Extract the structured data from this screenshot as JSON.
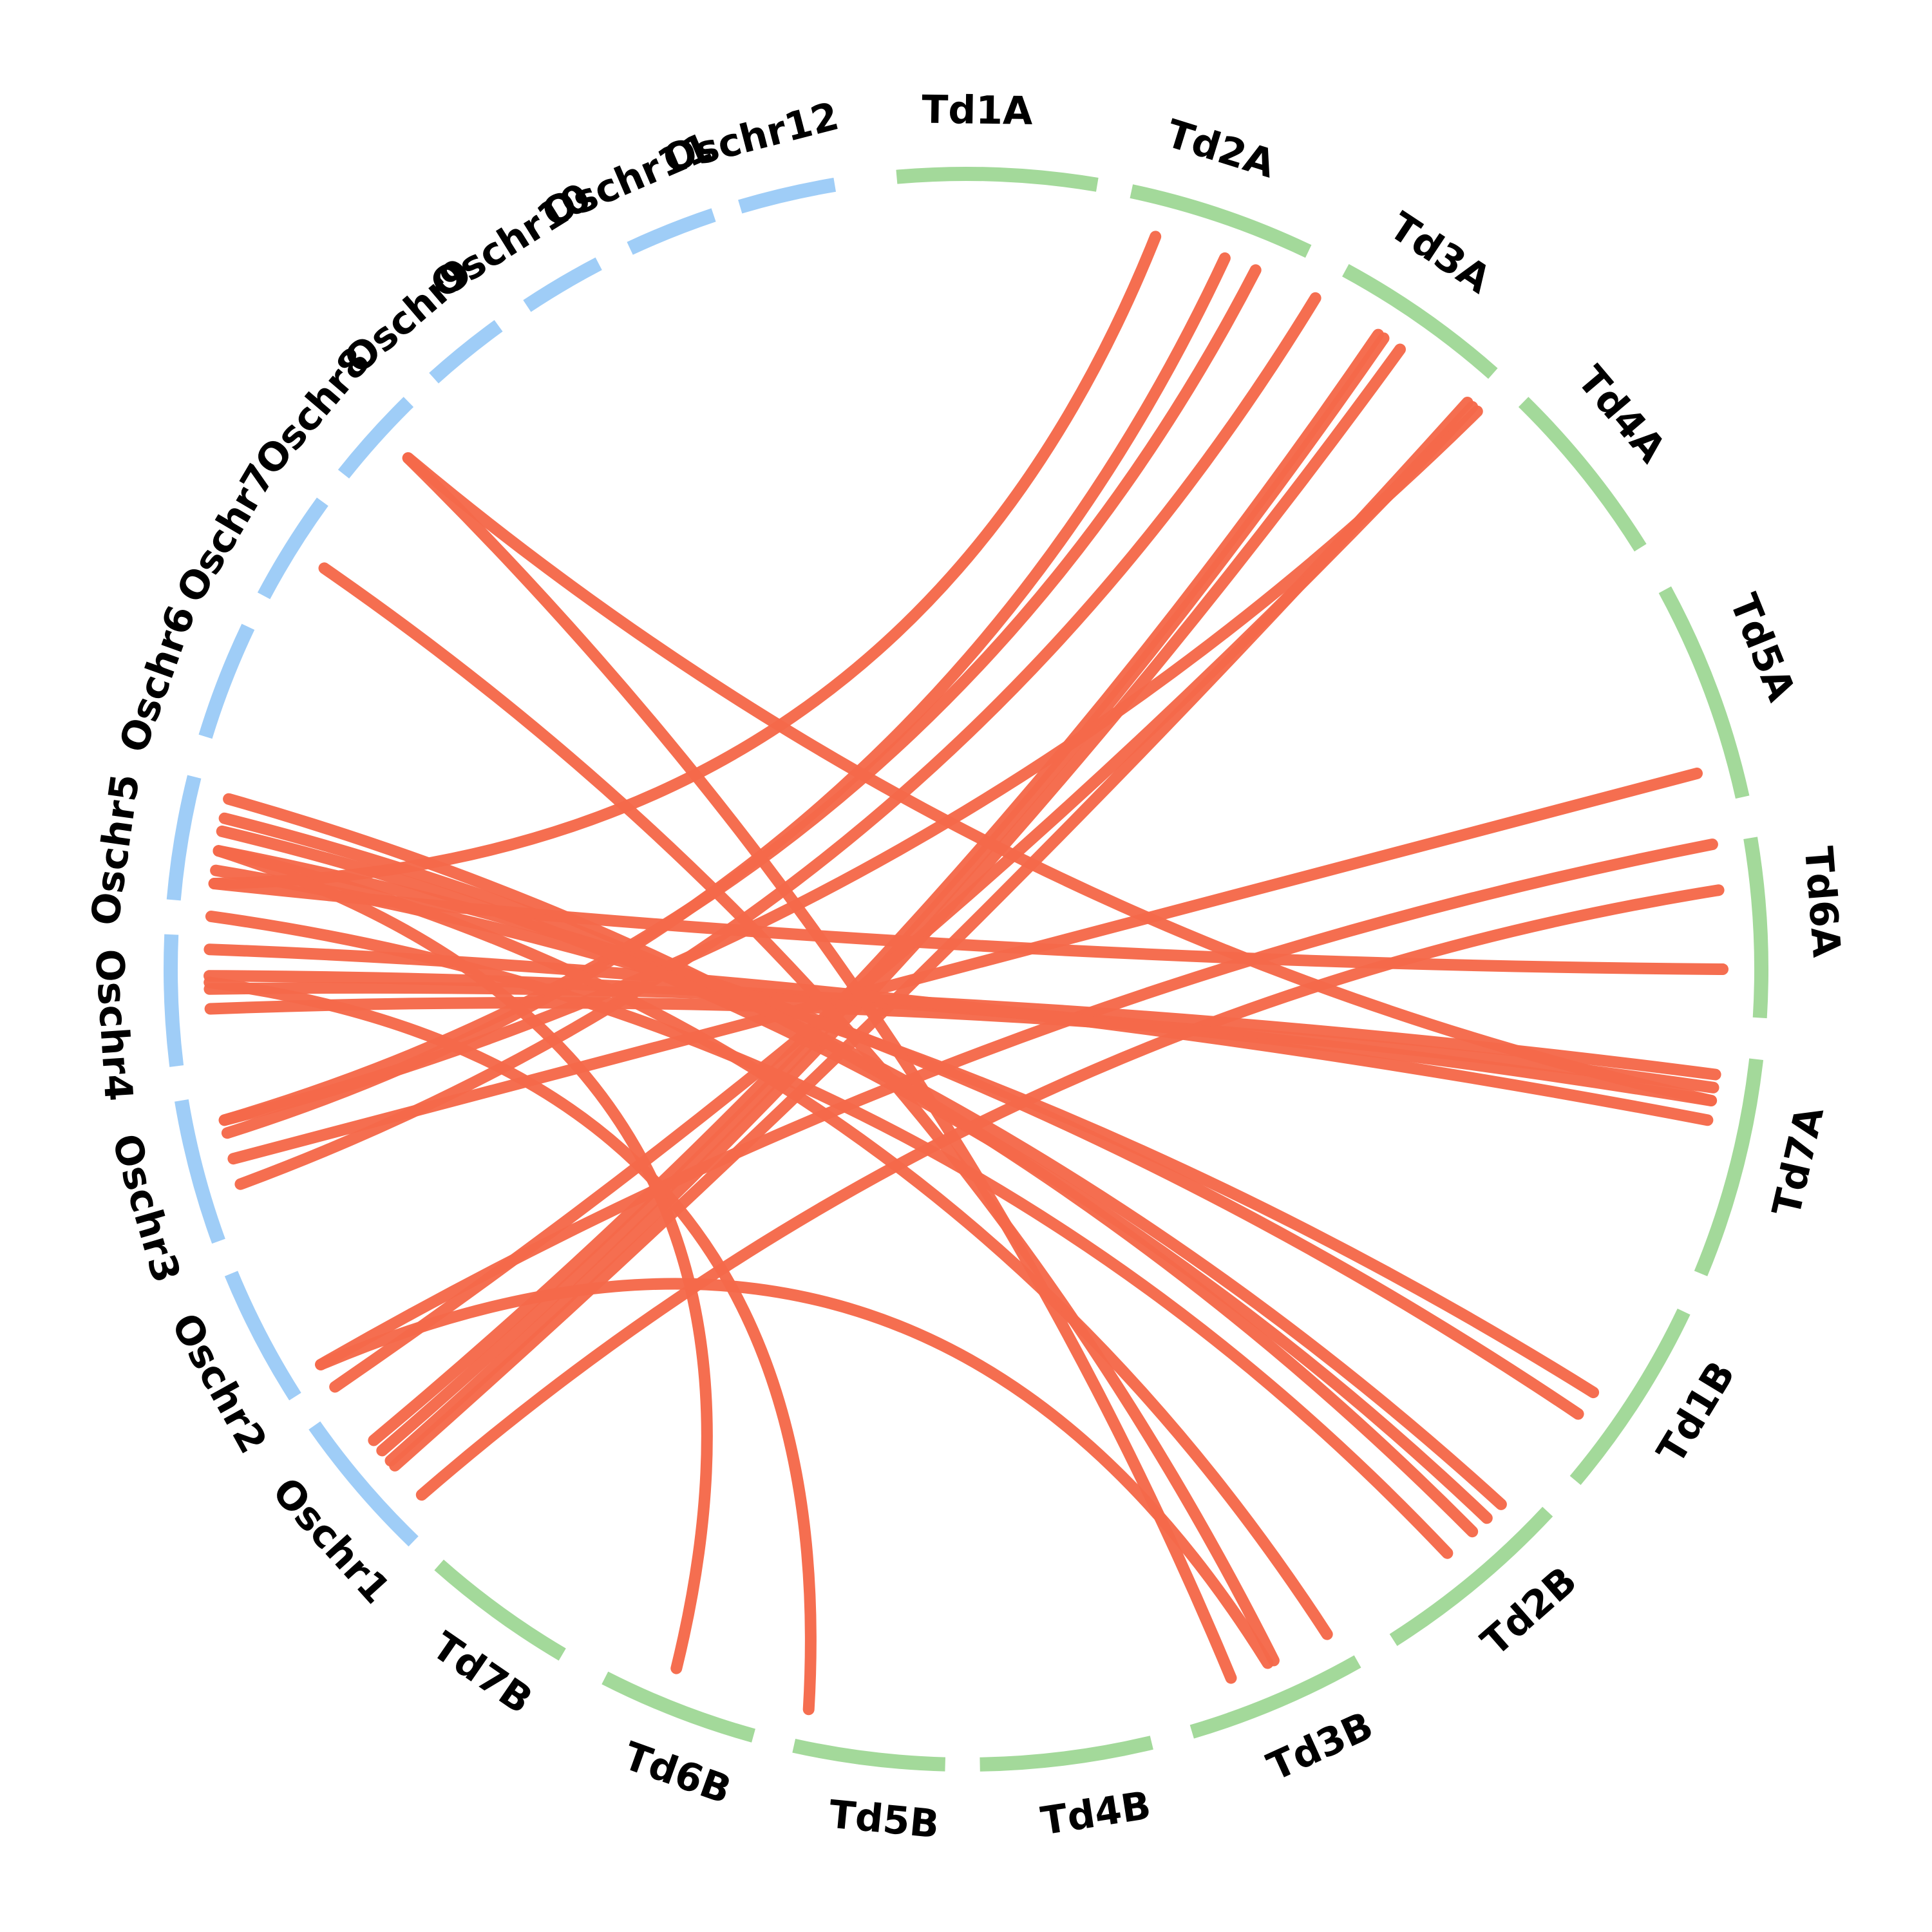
{
  "colors": {
    "wheat_chromosome": "#a3d99a",
    "rice_chromosome": "#9fcdf7",
    "link": "#f5694a",
    "label": "#000000"
  },
  "chromosomes": [
    {
      "id": "Td1A",
      "label": "Td1A",
      "group": "wheat",
      "start": -5.0,
      "end": 9.5
    },
    {
      "id": "Td2A",
      "label": "Td2A",
      "group": "wheat",
      "start": 12.0,
      "end": 25.5
    },
    {
      "id": "Td3A",
      "label": "Td3A",
      "group": "wheat",
      "start": 28.5,
      "end": 41.5
    },
    {
      "id": "Td4A",
      "label": "Td4A",
      "group": "wheat",
      "start": 44.5,
      "end": 58.0
    },
    {
      "id": "Td5A",
      "label": "Td5A",
      "group": "wheat",
      "start": 61.5,
      "end": 77.5
    },
    {
      "id": "Td6A",
      "label": "Td6A",
      "group": "wheat",
      "start": 80.5,
      "end": 93.5
    },
    {
      "id": "Td7A",
      "label": "Td7A",
      "group": "wheat",
      "start": 96.5,
      "end": 112.5
    },
    {
      "id": "Td1B",
      "label": "Td1B",
      "group": "wheat",
      "start": 115.5,
      "end": 130.0
    },
    {
      "id": "Td2B",
      "label": "Td2B",
      "group": "wheat",
      "start": 133.0,
      "end": 147.5
    },
    {
      "id": "Td3B",
      "label": "Td3B",
      "group": "wheat",
      "start": 150.5,
      "end": 163.5
    },
    {
      "id": "Td4B",
      "label": "Td4B",
      "group": "wheat",
      "start": 166.5,
      "end": 179.0
    },
    {
      "id": "Td5B",
      "label": "Td5B",
      "group": "wheat",
      "start": 181.5,
      "end": 192.5
    },
    {
      "id": "Td6B",
      "label": "Td6B",
      "group": "wheat",
      "start": 195.5,
      "end": 207.0
    },
    {
      "id": "Td7B",
      "label": "Td7B",
      "group": "wheat",
      "start": 210.5,
      "end": 221.5
    },
    {
      "id": "Oschr1",
      "label": "Oschr1",
      "group": "rice",
      "start": 224.0,
      "end": 235.0
    },
    {
      "id": "Oschr2",
      "label": "Oschr2",
      "group": "rice",
      "start": 237.5,
      "end": 247.5
    },
    {
      "id": "Oschr3",
      "label": "Oschr3",
      "group": "rice",
      "start": 250.0,
      "end": 260.5
    },
    {
      "id": "Oschr4",
      "label": "Oschr4",
      "group": "rice",
      "start": 263.0,
      "end": 272.5
    },
    {
      "id": "Oschr5",
      "label": "Oschr5",
      "group": "rice",
      "start": 275.0,
      "end": 284.0
    },
    {
      "id": "Oschr6",
      "label": "Oschr6",
      "group": "rice",
      "start": 287.0,
      "end": 295.5
    },
    {
      "id": "Oschr7",
      "label": "Oschr7",
      "group": "rice",
      "start": 298.0,
      "end": 306.0
    },
    {
      "id": "Oschr8",
      "label": "Oschr8",
      "group": "rice",
      "start": 308.5,
      "end": 315.5
    },
    {
      "id": "Oschr9",
      "label": "Oschr9",
      "group": "rice",
      "start": 318.0,
      "end": 324.0
    },
    {
      "id": "Oschr10",
      "label": "Oschr10",
      "group": "rice",
      "start": 326.5,
      "end": 332.5
    },
    {
      "id": "Oschr11",
      "label": "Oschr11",
      "group": "rice",
      "start": 335.0,
      "end": 341.5
    },
    {
      "id": "Oschr12",
      "label": "Oschr12",
      "group": "rice",
      "start": 343.5,
      "end": 350.5
    }
  ],
  "links": [
    [
      14.5,
      276.5
    ],
    [
      20.0,
      257.5
    ],
    [
      22.5,
      258.5
    ],
    [
      27.5,
      253.5
    ],
    [
      33.0,
      231.5
    ],
    [
      33.5,
      230.5
    ],
    [
      35.0,
      229.5
    ],
    [
      41.5,
      229.0
    ],
    [
      42.0,
      236.5
    ],
    [
      42.5,
      258.5
    ],
    [
      75.0,
      255.5
    ],
    [
      80.5,
      238.5
    ],
    [
      84.0,
      226.0
    ],
    [
      90.0,
      276.5
    ],
    [
      98.0,
      268.5
    ],
    [
      99.0,
      267.0
    ],
    [
      100.0,
      269.5
    ],
    [
      101.5,
      271.5
    ],
    [
      124.0,
      277.5
    ],
    [
      126.0,
      279.0
    ],
    [
      135.0,
      281.5
    ],
    [
      136.5,
      280.5
    ],
    [
      138.0,
      283.0
    ],
    [
      140.5,
      274.0
    ],
    [
      151.5,
      279.0
    ],
    [
      156.0,
      302.0
    ],
    [
      159.5,
      312.5
    ],
    [
      192.0,
      269.0
    ],
    [
      202.5,
      279.0
    ],
    [
      156.5,
      238.5
    ],
    [
      100.0,
      312.5
    ]
  ]
}
